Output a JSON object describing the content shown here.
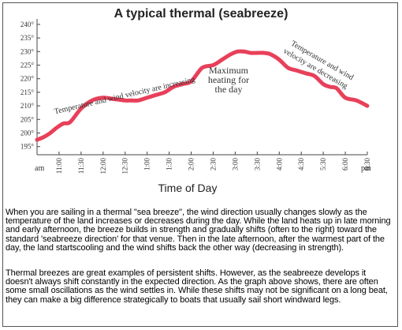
{
  "chart_data": {
    "type": "line",
    "title": "A typical thermal (seabreeze)",
    "xlabel": "Time of Day",
    "ylabel": "",
    "x_start_label": "am",
    "x_end_label": "pm",
    "x_tick_labels": [
      "11:00",
      "11:30",
      "12:00",
      "12:30",
      "1:00",
      "1:30",
      "2:00",
      "2:30",
      "3:00",
      "3:30",
      "4:00",
      "4:30",
      "5:30",
      "6:00",
      "6:30"
    ],
    "y_ticks": [
      195,
      200,
      205,
      210,
      215,
      220,
      225,
      230,
      235,
      240
    ],
    "y_tick_labels": [
      "195°",
      "200°",
      "205°",
      "210°",
      "215°",
      "220°",
      "225°",
      "230°",
      "235°",
      "240°"
    ],
    "ylim": [
      192,
      242
    ],
    "grid": false,
    "line_color": "#e8405a",
    "series": [
      {
        "x": [
          0,
          0.3,
          0.6,
          0.9,
          1.2,
          1.5,
          2.0,
          2.5,
          3.0,
          3.5,
          4.0,
          4.3,
          4.6,
          5.0,
          5.4,
          5.8,
          6.2,
          6.6,
          7.0,
          7.5,
          8.0,
          8.4,
          8.8,
          9.1,
          9.4,
          9.7,
          10.0,
          10.3,
          10.6,
          11.0,
          11.4,
          11.8,
          12.2,
          12.6,
          13.0,
          13.3,
          13.6,
          14.0,
          14.5,
          15.0
        ],
        "y": [
          197.5,
          198.5,
          200,
          202,
          203.5,
          204,
          209,
          212,
          213,
          212.5,
          212,
          212,
          212,
          213,
          214,
          215,
          217,
          218,
          219,
          224,
          225,
          227,
          229,
          230,
          230,
          229.5,
          229.5,
          229.5,
          229,
          227,
          224,
          223,
          222,
          221,
          218,
          217,
          216.5,
          213,
          212,
          210
        ]
      }
    ],
    "annotations": [
      {
        "text": "Temperature and wind velocity are increasing",
        "x": 4.0,
        "y": 213
      },
      {
        "text": "Maximum",
        "x": 8.7,
        "y": 222
      },
      {
        "text": "heating for",
        "x": 8.7,
        "y": 218.5
      },
      {
        "text": "the day",
        "x": 8.7,
        "y": 215
      },
      {
        "text": "Temperature and wind",
        "x": 12.9,
        "y": 226
      },
      {
        "text": "velocity are decreasing",
        "x": 12.6,
        "y": 223
      }
    ]
  },
  "text": {
    "paragraph1": "When you are sailing in a thermal \"sea breeze\", the wind direction usually changes slowly as the temperature of the land increases or decreases during the day. While the land heats up in late morning and early afternoon, the breeze builds in strength and gradually shifts (often to the right) toward the standard 'seabreeze direction' for that venue. Then in the late afternoon, after the warmest part of the day, the land startscooling and the wind shifts back the other way (decreasing in strength).",
    "paragraph2": "Thermal breezes are great examples of persistent shifts. However, as the seabreeze develops it doesn't always shift constantly in the expected direction. As the graph above shows, there are often some small oscillations as the wind settles in. While these shifts may not be significant on a long beat, they can make a big difference strategically to boats that usually sail short windward legs."
  }
}
